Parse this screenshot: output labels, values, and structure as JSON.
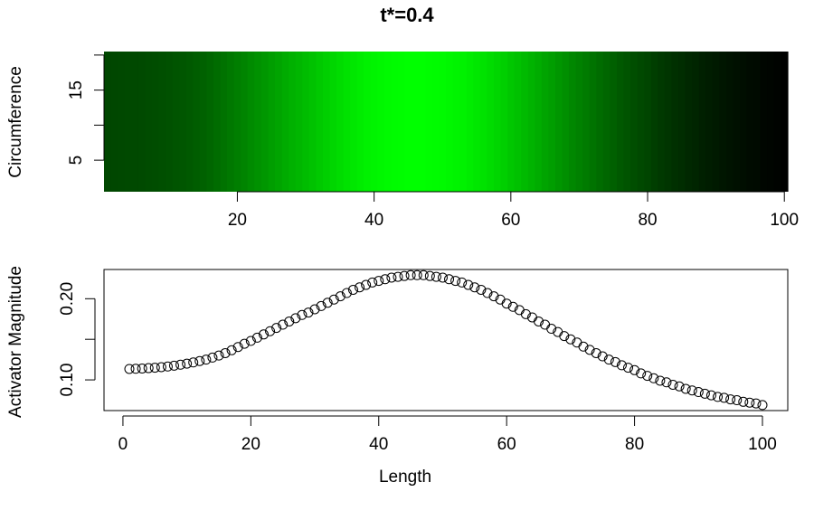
{
  "chart_data": [
    {
      "type": "heatmap",
      "title": "t*=0.4",
      "ylabel": "Circumference",
      "xlim": [
        0.5,
        100.5
      ],
      "ylim": [
        0.5,
        20.5
      ],
      "xticks": [
        20,
        40,
        60,
        80,
        100
      ],
      "yticks": [
        5,
        {
          "value": 10,
          "label": null
        },
        15,
        {
          "value": 20,
          "label": null
        }
      ],
      "color_low": "#000000",
      "color_high": "#00ff00"
    },
    {
      "type": "scatter",
      "xlabel": "Length",
      "ylabel": "Activator Magnitude",
      "x": [
        1,
        2,
        3,
        4,
        5,
        6,
        7,
        8,
        9,
        10,
        11,
        12,
        13,
        14,
        15,
        16,
        17,
        18,
        19,
        20,
        21,
        22,
        23,
        24,
        25,
        26,
        27,
        28,
        29,
        30,
        31,
        32,
        33,
        34,
        35,
        36,
        37,
        38,
        39,
        40,
        41,
        42,
        43,
        44,
        45,
        46,
        47,
        48,
        49,
        50,
        51,
        52,
        53,
        54,
        55,
        56,
        57,
        58,
        59,
        60,
        61,
        62,
        63,
        64,
        65,
        66,
        67,
        68,
        69,
        70,
        71,
        72,
        73,
        74,
        75,
        76,
        77,
        78,
        79,
        80,
        81,
        82,
        83,
        84,
        85,
        86,
        87,
        88,
        89,
        90,
        91,
        92,
        93,
        94,
        95,
        96,
        97,
        98,
        99,
        100
      ],
      "values": [
        0.1135,
        0.1137,
        0.114,
        0.1145,
        0.115,
        0.1157,
        0.1165,
        0.1175,
        0.1187,
        0.12,
        0.1215,
        0.1232,
        0.125,
        0.1275,
        0.13,
        0.133,
        0.1365,
        0.1405,
        0.1445,
        0.148,
        0.152,
        0.156,
        0.16,
        0.164,
        0.168,
        0.172,
        0.176,
        0.18,
        0.183,
        0.187,
        0.191,
        0.195,
        0.199,
        0.203,
        0.207,
        0.211,
        0.214,
        0.217,
        0.22,
        0.222,
        0.224,
        0.226,
        0.227,
        0.228,
        0.229,
        0.229,
        0.229,
        0.228,
        0.227,
        0.226,
        0.224,
        0.222,
        0.22,
        0.217,
        0.214,
        0.211,
        0.207,
        0.203,
        0.199,
        0.194,
        0.19,
        0.186,
        0.181,
        0.177,
        0.172,
        0.168,
        0.163,
        0.159,
        0.154,
        0.15,
        0.146,
        0.141,
        0.137,
        0.133,
        0.129,
        0.125,
        0.122,
        0.118,
        0.115,
        0.112,
        0.108,
        0.105,
        0.102,
        0.099,
        0.097,
        0.094,
        0.092,
        0.089,
        0.087,
        0.085,
        0.083,
        0.081,
        0.079,
        0.078,
        0.076,
        0.075,
        0.073,
        0.072,
        0.071,
        0.069
      ],
      "xlim": [
        -2.96,
        103.96
      ],
      "ylim": [
        0.0622,
        0.236
      ],
      "xticks": [
        0,
        20,
        40,
        60,
        80,
        100
      ],
      "yticks": [
        {
          "value": 0.1,
          "label": "0.10"
        },
        {
          "value": 0.15,
          "label": null
        },
        {
          "value": 0.2,
          "label": "0.20"
        }
      ],
      "marker_color": "#000000"
    }
  ]
}
